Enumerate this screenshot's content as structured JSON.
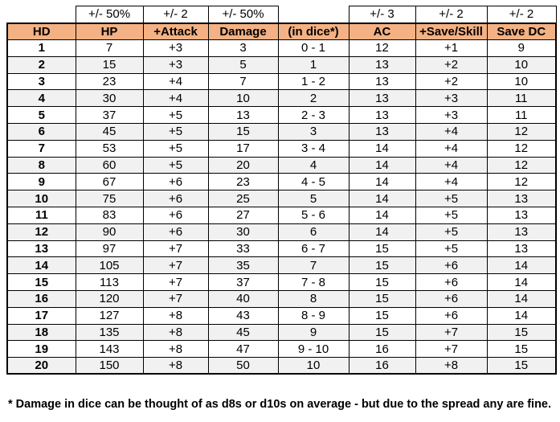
{
  "colors": {
    "header_bg": "#F4B183",
    "alt_row_bg": "#F1F1F1",
    "border": "#000000"
  },
  "table": {
    "variance_row": [
      "",
      "+/- 50%",
      "+/- 2",
      "+/- 50%",
      "",
      "+/- 3",
      "+/- 2",
      "+/- 2"
    ],
    "headers": [
      "HD",
      "HP",
      "+Attack",
      "Damage",
      "(in dice*)",
      "AC",
      "+Save/Skill",
      "Save DC"
    ],
    "rows": [
      [
        "1",
        "7",
        "+3",
        "3",
        "0 - 1",
        "12",
        "+1",
        "9"
      ],
      [
        "2",
        "15",
        "+3",
        "5",
        "1",
        "13",
        "+2",
        "10"
      ],
      [
        "3",
        "23",
        "+4",
        "7",
        "1 - 2",
        "13",
        "+2",
        "10"
      ],
      [
        "4",
        "30",
        "+4",
        "10",
        "2",
        "13",
        "+3",
        "11"
      ],
      [
        "5",
        "37",
        "+5",
        "13",
        "2 - 3",
        "13",
        "+3",
        "11"
      ],
      [
        "6",
        "45",
        "+5",
        "15",
        "3",
        "13",
        "+4",
        "12"
      ],
      [
        "7",
        "53",
        "+5",
        "17",
        "3 - 4",
        "14",
        "+4",
        "12"
      ],
      [
        "8",
        "60",
        "+5",
        "20",
        "4",
        "14",
        "+4",
        "12"
      ],
      [
        "9",
        "67",
        "+6",
        "23",
        "4 - 5",
        "14",
        "+4",
        "12"
      ],
      [
        "10",
        "75",
        "+6",
        "25",
        "5",
        "14",
        "+5",
        "13"
      ],
      [
        "11",
        "83",
        "+6",
        "27",
        "5 - 6",
        "14",
        "+5",
        "13"
      ],
      [
        "12",
        "90",
        "+6",
        "30",
        "6",
        "14",
        "+5",
        "13"
      ],
      [
        "13",
        "97",
        "+7",
        "33",
        "6 - 7",
        "15",
        "+5",
        "13"
      ],
      [
        "14",
        "105",
        "+7",
        "35",
        "7",
        "15",
        "+6",
        "14"
      ],
      [
        "15",
        "113",
        "+7",
        "37",
        "7 - 8",
        "15",
        "+6",
        "14"
      ],
      [
        "16",
        "120",
        "+7",
        "40",
        "8",
        "15",
        "+6",
        "14"
      ],
      [
        "17",
        "127",
        "+8",
        "43",
        "8 - 9",
        "15",
        "+6",
        "14"
      ],
      [
        "18",
        "135",
        "+8",
        "45",
        "9",
        "15",
        "+7",
        "15"
      ],
      [
        "19",
        "143",
        "+8",
        "47",
        "9 - 10",
        "16",
        "+7",
        "15"
      ],
      [
        "20",
        "150",
        "+8",
        "50",
        "10",
        "16",
        "+8",
        "15"
      ]
    ]
  },
  "footnote": "* Damage in dice can be thought of as d8s or d10s on average - but due to the spread any are fine."
}
